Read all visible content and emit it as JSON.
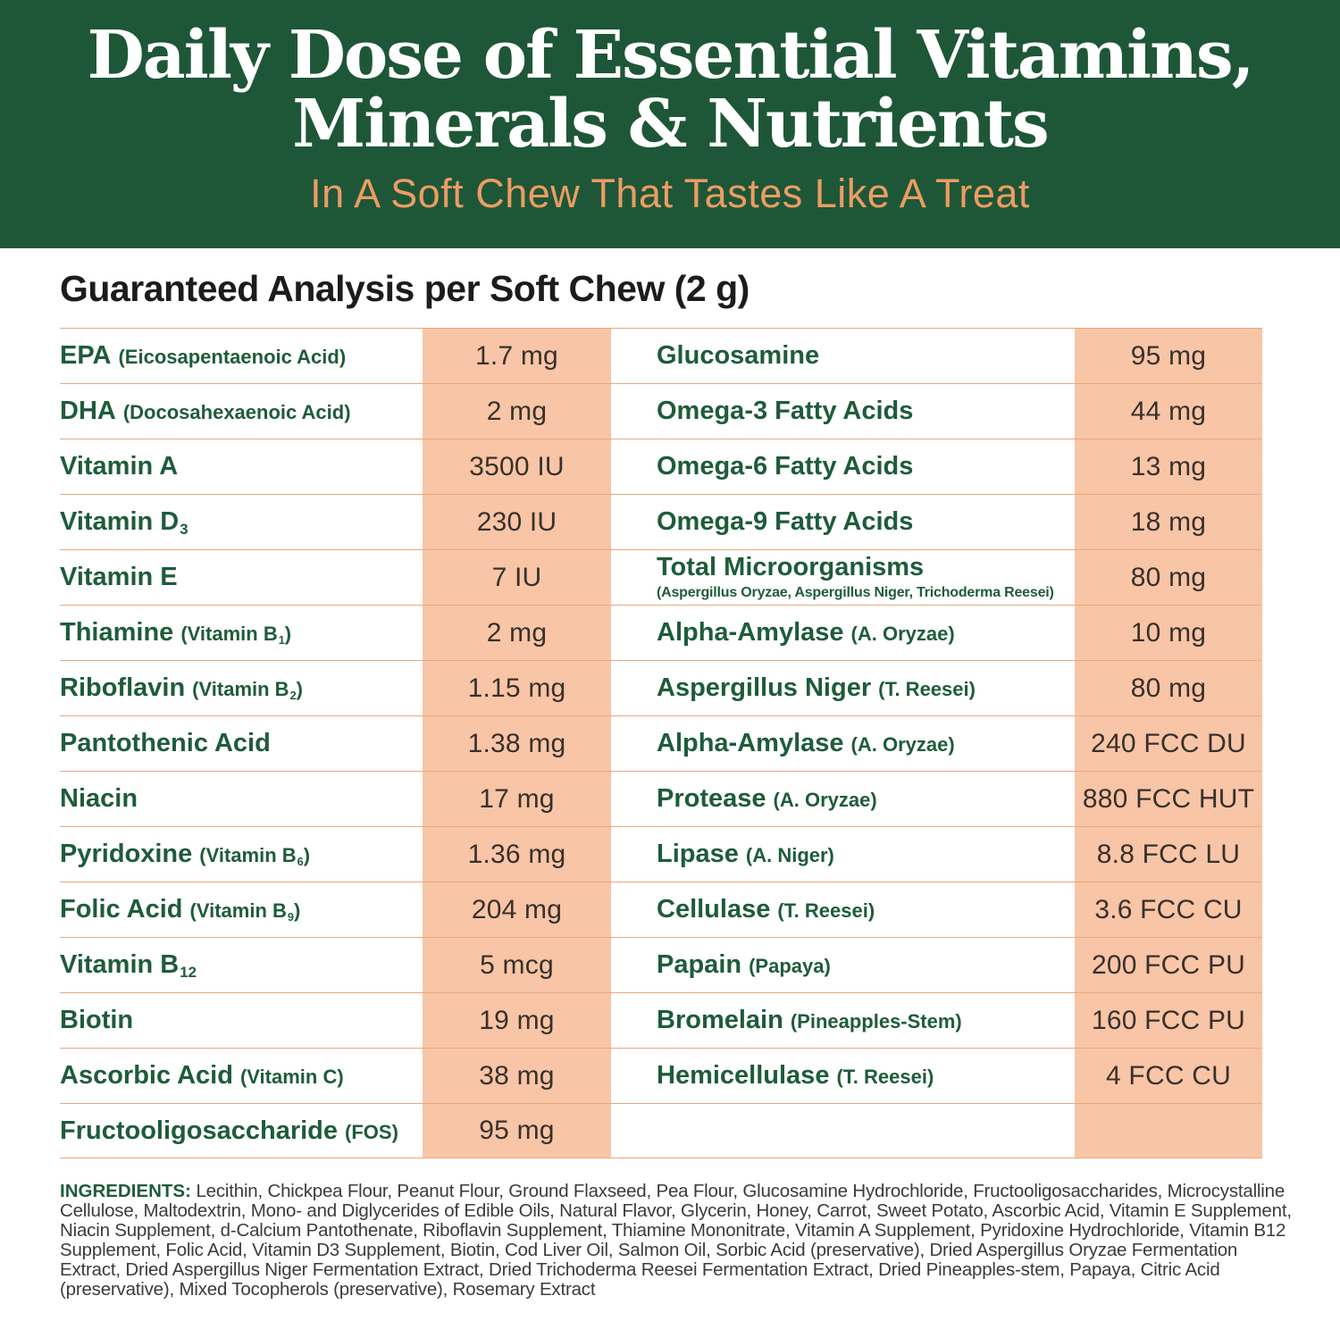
{
  "banner": {
    "title_line1": "Daily Dose of Essential Vitamins,",
    "title_line2": "Minerals & Nutrients",
    "subtitle": "In A Soft Chew That Tastes Like A Treat",
    "colors": {
      "background": "#1e5737",
      "title_text": "#ffffff",
      "subtitle_text": "#ec9c64"
    }
  },
  "section": {
    "heading": "Guaranteed Analysis per Soft Chew (2 g)"
  },
  "table": {
    "colors": {
      "value_column_bg": "#f9c5a7",
      "row_divider": "#e9a87c",
      "label_text": "#1e5c3a",
      "value_text": "#38312b"
    },
    "rows": [
      {
        "left": {
          "name": [
            {
              "t": "EPA"
            }
          ],
          "paren": [
            {
              "t": "(Eicosapentaenoic Acid)"
            }
          ],
          "subline": "",
          "value": "1.7 mg"
        },
        "right": {
          "name": [
            {
              "t": "Glucosamine"
            }
          ],
          "paren": [],
          "subline": "",
          "value": "95 mg"
        }
      },
      {
        "left": {
          "name": [
            {
              "t": "DHA"
            }
          ],
          "paren": [
            {
              "t": "(Docosahexaenoic Acid)"
            }
          ],
          "subline": "",
          "value": "2 mg"
        },
        "right": {
          "name": [
            {
              "t": "Omega-3 Fatty Acids"
            }
          ],
          "paren": [],
          "subline": "",
          "value": "44 mg"
        }
      },
      {
        "left": {
          "name": [
            {
              "t": "Vitamin A"
            }
          ],
          "paren": [],
          "subline": "",
          "value": "3500 IU"
        },
        "right": {
          "name": [
            {
              "t": "Omega-6 Fatty Acids"
            }
          ],
          "paren": [],
          "subline": "",
          "value": "13 mg"
        }
      },
      {
        "left": {
          "name": [
            {
              "t": "Vitamin D"
            },
            {
              "t": "3",
              "sub": true
            }
          ],
          "paren": [],
          "subline": "",
          "value": "230 IU"
        },
        "right": {
          "name": [
            {
              "t": "Omega-9 Fatty Acids"
            }
          ],
          "paren": [],
          "subline": "",
          "value": "18 mg"
        }
      },
      {
        "left": {
          "name": [
            {
              "t": "Vitamin E"
            }
          ],
          "paren": [],
          "subline": "",
          "value": "7 IU"
        },
        "right": {
          "name": [
            {
              "t": "Total Microorganisms"
            }
          ],
          "paren": [],
          "subline": "(Aspergillus Oryzae, Aspergillus Niger, Trichoderma Reesei)",
          "value": "80 mg"
        }
      },
      {
        "left": {
          "name": [
            {
              "t": "Thiamine"
            }
          ],
          "paren": [
            {
              "t": "(Vitamin B"
            },
            {
              "t": "1",
              "sub": true
            },
            {
              "t": ")"
            }
          ],
          "subline": "",
          "value": "2 mg"
        },
        "right": {
          "name": [
            {
              "t": "Alpha-Amylase"
            }
          ],
          "paren": [
            {
              "t": "(A. Oryzae)"
            }
          ],
          "subline": "",
          "value": "10 mg"
        }
      },
      {
        "left": {
          "name": [
            {
              "t": "Riboflavin"
            }
          ],
          "paren": [
            {
              "t": "(Vitamin B"
            },
            {
              "t": "2",
              "sub": true
            },
            {
              "t": ")"
            }
          ],
          "subline": "",
          "value": "1.15 mg"
        },
        "right": {
          "name": [
            {
              "t": "Aspergillus Niger"
            }
          ],
          "paren": [
            {
              "t": "(T. Reesei)"
            }
          ],
          "subline": "",
          "value": "80 mg"
        }
      },
      {
        "left": {
          "name": [
            {
              "t": "Pantothenic Acid"
            }
          ],
          "paren": [],
          "subline": "",
          "value": "1.38 mg"
        },
        "right": {
          "name": [
            {
              "t": "Alpha-Amylase"
            }
          ],
          "paren": [
            {
              "t": "(A. Oryzae)"
            }
          ],
          "subline": "",
          "value": "240 FCC DU"
        }
      },
      {
        "left": {
          "name": [
            {
              "t": "Niacin"
            }
          ],
          "paren": [],
          "subline": "",
          "value": "17 mg"
        },
        "right": {
          "name": [
            {
              "t": "Protease"
            }
          ],
          "paren": [
            {
              "t": "(A. Oryzae)"
            }
          ],
          "subline": "",
          "value": "880 FCC HUT"
        }
      },
      {
        "left": {
          "name": [
            {
              "t": "Pyridoxine"
            }
          ],
          "paren": [
            {
              "t": "(Vitamin B"
            },
            {
              "t": "6",
              "sub": true
            },
            {
              "t": ")"
            }
          ],
          "subline": "",
          "value": "1.36 mg"
        },
        "right": {
          "name": [
            {
              "t": "Lipase"
            }
          ],
          "paren": [
            {
              "t": "(A. Niger)"
            }
          ],
          "subline": "",
          "value": "8.8 FCC LU"
        }
      },
      {
        "left": {
          "name": [
            {
              "t": "Folic Acid"
            }
          ],
          "paren": [
            {
              "t": "(Vitamin B"
            },
            {
              "t": "9",
              "sub": true
            },
            {
              "t": ")"
            }
          ],
          "subline": "",
          "value": "204 mg"
        },
        "right": {
          "name": [
            {
              "t": "Cellulase"
            }
          ],
          "paren": [
            {
              "t": "(T. Reesei)"
            }
          ],
          "subline": "",
          "value": "3.6 FCC CU"
        }
      },
      {
        "left": {
          "name": [
            {
              "t": "Vitamin B"
            },
            {
              "t": "12",
              "sub": true
            }
          ],
          "paren": [],
          "subline": "",
          "value": "5 mcg"
        },
        "right": {
          "name": [
            {
              "t": "Papain"
            }
          ],
          "paren": [
            {
              "t": "(Papaya)"
            }
          ],
          "subline": "",
          "value": "200 FCC PU"
        }
      },
      {
        "left": {
          "name": [
            {
              "t": "Biotin"
            }
          ],
          "paren": [],
          "subline": "",
          "value": "19 mg"
        },
        "right": {
          "name": [
            {
              "t": "Bromelain"
            }
          ],
          "paren": [
            {
              "t": "(Pineapples-Stem)"
            }
          ],
          "subline": "",
          "value": "160 FCC PU"
        }
      },
      {
        "left": {
          "name": [
            {
              "t": "Ascorbic Acid"
            }
          ],
          "paren": [
            {
              "t": "(Vitamin C)"
            }
          ],
          "subline": "",
          "value": "38 mg"
        },
        "right": {
          "name": [
            {
              "t": "Hemicellulase"
            }
          ],
          "paren": [
            {
              "t": "(T. Reesei)"
            }
          ],
          "subline": "",
          "value": "4 FCC CU"
        }
      },
      {
        "left": {
          "name": [
            {
              "t": "Fructooligosaccharide"
            }
          ],
          "paren": [
            {
              "t": "(FOS)"
            }
          ],
          "subline": "",
          "value": "95 mg"
        },
        "right": {
          "name": [],
          "paren": [],
          "subline": "",
          "value": ""
        }
      }
    ]
  },
  "ingredients": {
    "label": "INGREDIENTS:",
    "text": "Lecithin, Chickpea Flour, Peanut Flour, Ground Flaxseed, Pea Flour, Glucosamine Hydrochloride, Fructooligosaccharides, Microcystalline Cellulose, Maltodextrin, Mono- and Diglycerides of Edible Oils, Natural Flavor, Glycerin, Honey, Carrot, Sweet Potato, Ascorbic Acid, Vitamin E Supplement, Niacin Supplement, d-Calcium Pantothenate, Riboflavin Supplement, Thiamine Mononitrate, Vitamin A Supplement, Pyridoxine Hydrochloride, Vitamin B12 Supplement, Folic Acid, Vitamin D3 Supplement, Biotin, Cod Liver Oil, Salmon Oil, Sorbic Acid (preservative), Dried Aspergillus Oryzae Fermentation Extract, Dried Aspergillus Niger Fermentation Extract, Dried Trichoderma Reesei Fermentation Extract, Dried Pineapples-stem, Papaya, Citric Acid (preservative), Mixed Tocopherols (preservative), Rosemary Extract"
  }
}
